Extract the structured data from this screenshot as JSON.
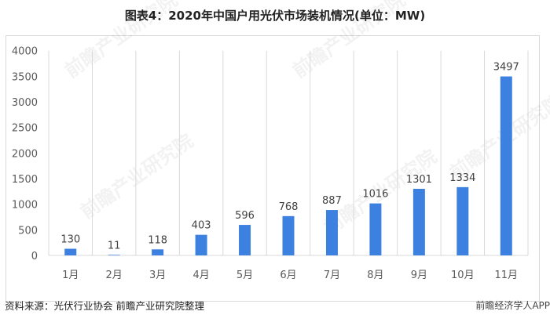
{
  "title": "图表4：2020年中国户用光伏市场装机情况(单位：MW)",
  "source": "资料来源：光伏行业协会 前瞻产业研究院整理",
  "brand": "前瞻经济学人APP",
  "watermark": "前瞻产业研究院",
  "chart_data": {
    "type": "bar",
    "title": "图表4：2020年中国户用光伏市场装机情况(单位：MW)",
    "categories": [
      "1月",
      "2月",
      "3月",
      "4月",
      "5月",
      "6月",
      "7月",
      "8月",
      "9月",
      "10月",
      "11月"
    ],
    "values": [
      130,
      11,
      118,
      403,
      596,
      768,
      887,
      1016,
      1301,
      1334,
      3497
    ],
    "ylim": [
      0,
      4000
    ],
    "yticks": [
      0,
      500,
      1000,
      1500,
      2000,
      2500,
      3000,
      3500,
      4000
    ],
    "xlabel": "",
    "ylabel": "",
    "grid": "vertical category separators",
    "legend": "none",
    "bar_color": "#3c80e0",
    "data_labels": true
  }
}
